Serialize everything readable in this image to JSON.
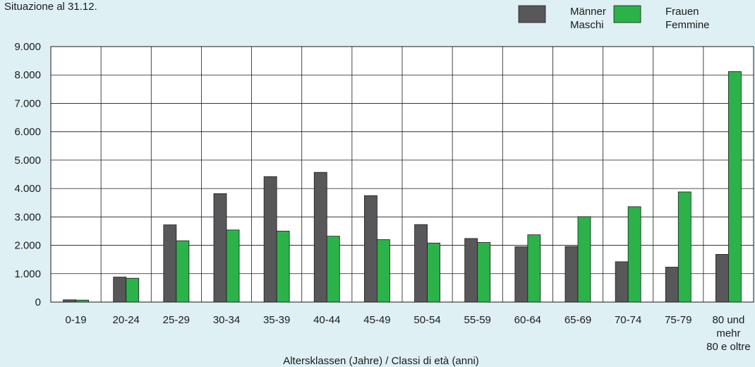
{
  "chart_data": {
    "type": "bar",
    "subtitle": "Situazione al 31.12.",
    "xlabel": "Altersklassen (Jahre) / Classi di età (anni)",
    "ylabel": "",
    "ylim": [
      0,
      9000
    ],
    "yticks": [
      "0",
      "1.000",
      "2.000",
      "3.000",
      "4.000",
      "5.000",
      "6.000",
      "7.000",
      "8.000",
      "9.000"
    ],
    "grid": true,
    "legend_position": "top-right",
    "categories": [
      "0-19",
      "20-24",
      "25-29",
      "30-34",
      "35-39",
      "40-44",
      "45-49",
      "50-54",
      "55-59",
      "60-64",
      "65-69",
      "70-74",
      "75-79",
      "80 und mehr 80 e oltre"
    ],
    "category_lines": [
      [
        "0-19"
      ],
      [
        "20-24"
      ],
      [
        "25-29"
      ],
      [
        "30-34"
      ],
      [
        "35-39"
      ],
      [
        "40-44"
      ],
      [
        "45-49"
      ],
      [
        "50-54"
      ],
      [
        "55-59"
      ],
      [
        "60-64"
      ],
      [
        "65-69"
      ],
      [
        "70-74"
      ],
      [
        "75-79"
      ],
      [
        "80 und",
        "mehr",
        "80 e oltre"
      ]
    ],
    "series": [
      {
        "name": "Männer Maschi",
        "name_lines": [
          "Männer",
          "Maschi"
        ],
        "color": "#58585a",
        "values": [
          80,
          880,
          2720,
          3820,
          4420,
          4570,
          3750,
          2730,
          2240,
          1950,
          1960,
          1420,
          1230,
          1680
        ]
      },
      {
        "name": "Frauen Femmine",
        "name_lines": [
          "Frauen",
          "Femmine"
        ],
        "color": "#2bb34a",
        "values": [
          70,
          840,
          2160,
          2540,
          2500,
          2320,
          2200,
          2080,
          2100,
          2370,
          3010,
          3360,
          3880,
          8120
        ]
      }
    ]
  }
}
